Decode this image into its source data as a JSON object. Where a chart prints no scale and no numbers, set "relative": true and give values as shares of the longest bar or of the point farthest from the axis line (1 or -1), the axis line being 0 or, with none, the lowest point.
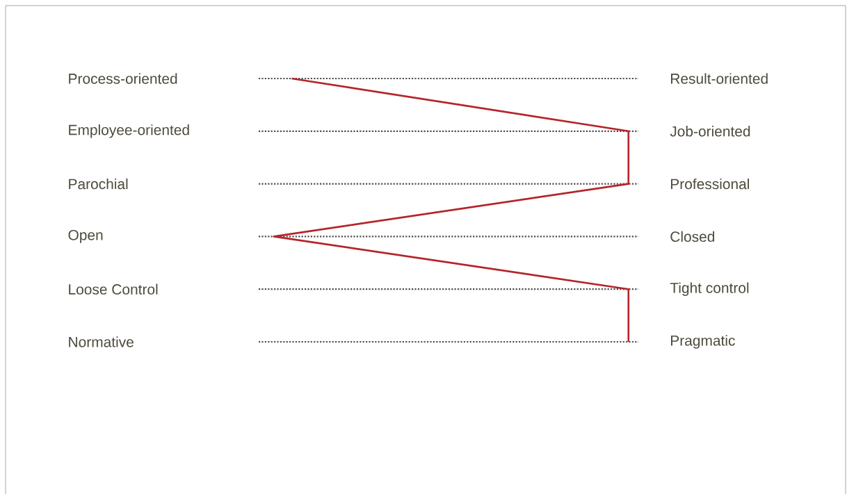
{
  "chart_data": {
    "type": "line",
    "relative": true,
    "categories": [
      "Process-oriented",
      "Employee-oriented",
      "Parochial",
      "Open",
      "Loose Control",
      "Normative"
    ],
    "y2_categories": [
      "Result-oriented",
      "Job-oriented",
      "Professional",
      "Closed",
      "Tight control",
      "Pragmatic"
    ],
    "values": [
      0.05,
      1,
      1,
      0,
      1,
      1
    ],
    "color": "#b5242a",
    "grid": "y",
    "orientation": "horizontal"
  }
}
